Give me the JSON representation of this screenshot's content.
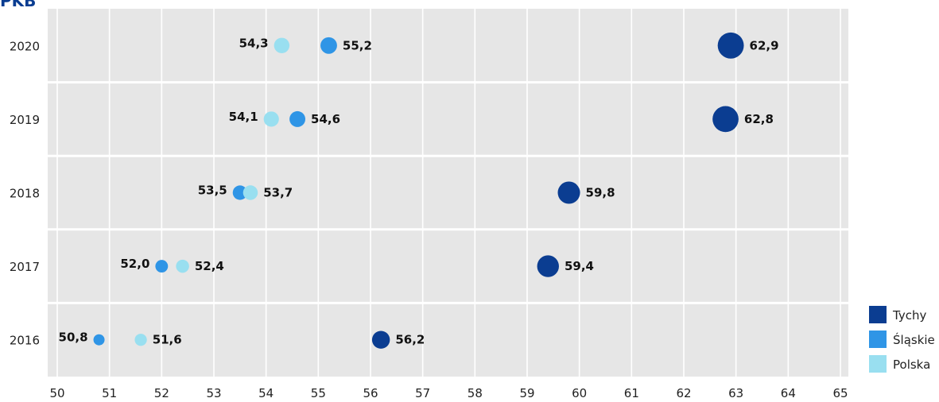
{
  "title_fragment": "PKB",
  "chart_data": {
    "type": "scatter",
    "title": "",
    "xlabel": "",
    "ylabel": "",
    "xlim": [
      50,
      65
    ],
    "x_ticks": [
      50,
      51,
      52,
      53,
      54,
      55,
      56,
      57,
      58,
      59,
      60,
      61,
      62,
      63,
      64,
      65
    ],
    "x_tick_labels": [
      "50",
      "51",
      "52",
      "53",
      "54",
      "55",
      "56",
      "57",
      "58",
      "59",
      "60",
      "61",
      "62",
      "63",
      "64",
      "65"
    ],
    "categories": [
      "2020",
      "2019",
      "2018",
      "2017",
      "2016"
    ],
    "grid": true,
    "legend_position": "bottom-right",
    "series": [
      {
        "name": "Tychy",
        "color": "#0b3d91",
        "values": [
          62.9,
          62.8,
          59.8,
          59.4,
          56.2
        ],
        "labels": [
          "62,9",
          "62,8",
          "59,8",
          "59,4",
          "56,2"
        ]
      },
      {
        "name": "Śląskie",
        "color": "#2f95e6",
        "values": [
          55.2,
          54.6,
          53.5,
          52.0,
          50.8
        ],
        "labels": [
          "55,2",
          "54,6",
          "53,5",
          "52,0",
          "50,8"
        ]
      },
      {
        "name": "Polska",
        "color": "#99dff0",
        "values": [
          54.3,
          54.1,
          53.7,
          52.4,
          51.6
        ],
        "labels": [
          "54,3",
          "54,1",
          "53,7",
          "52,4",
          "51,6"
        ]
      }
    ]
  }
}
